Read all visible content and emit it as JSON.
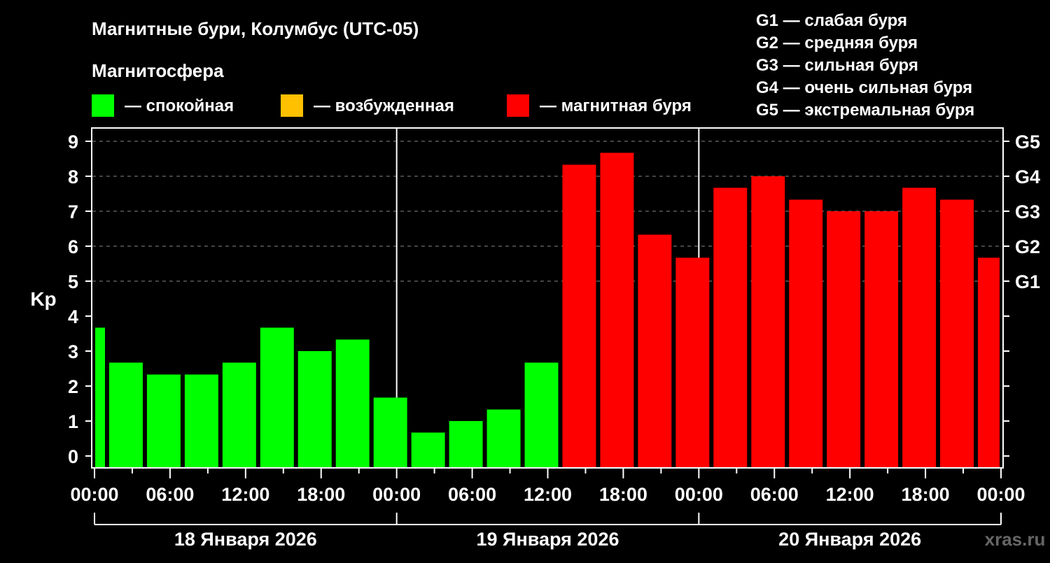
{
  "chart_data": {
    "type": "bar",
    "title": "Магнитные бури, Колумбус (UTC-05)",
    "legend_title": "Магнитосфера",
    "legend": [
      {
        "label": "— спокойная",
        "color": "#00ff00"
      },
      {
        "label": "— возбужденная",
        "color": "#ffc000"
      },
      {
        "label": "— магнитная буря",
        "color": "#ff0000"
      }
    ],
    "storm_scale": [
      "G1 — слабая буря",
      "G2 — средняя буря",
      "G3 — сильная буря",
      "G4 — очень сильная буря",
      "G5 — экстремальная буря"
    ],
    "ylabel": "Kp",
    "ylim": [
      0,
      9
    ],
    "yticks": [
      "0",
      "1",
      "2",
      "3",
      "4",
      "5",
      "6",
      "7",
      "8",
      "9"
    ],
    "right_ticks": [
      {
        "kp": 5,
        "label": "G1"
      },
      {
        "kp": 6,
        "label": "G2"
      },
      {
        "kp": 7,
        "label": "G3"
      },
      {
        "kp": 8,
        "label": "G4"
      },
      {
        "kp": 9,
        "label": "G5"
      }
    ],
    "xlim_hours": [
      0,
      72
    ],
    "xticks": [
      "00:00",
      "06:00",
      "12:00",
      "18:00",
      "00:00",
      "06:00",
      "12:00",
      "18:00",
      "00:00",
      "06:00",
      "12:00",
      "18:00",
      "00:00"
    ],
    "days": [
      "18 Января 2026",
      "19 Января 2026",
      "20 Января 2026"
    ],
    "bar_start_hour": -2,
    "bar_width_hours": 3,
    "values": [
      3.67,
      2.67,
      2.33,
      2.33,
      2.67,
      3.67,
      3.0,
      3.33,
      1.67,
      0.67,
      1.0,
      1.33,
      2.67,
      8.33,
      8.67,
      6.33,
      5.67,
      7.67,
      8.0,
      7.33,
      7.0,
      7.0,
      7.67,
      7.33,
      5.67
    ],
    "grid": true
  },
  "watermark": "xras.ru"
}
